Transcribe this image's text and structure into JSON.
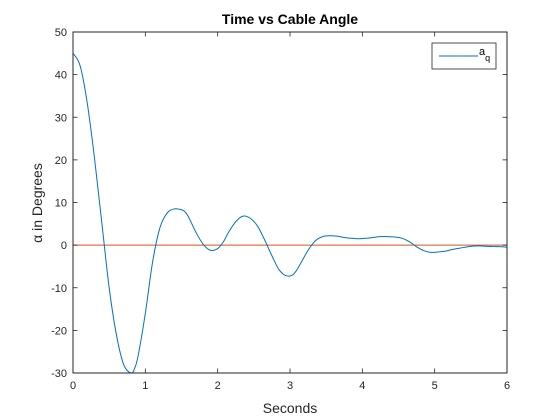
{
  "chart_data": {
    "type": "line",
    "title": "Time vs Cable Angle",
    "xlabel": "Seconds",
    "ylabel_symbol": "α",
    "ylabel_rest": " in Degrees",
    "xlim": [
      0,
      6
    ],
    "ylim": [
      -30,
      50
    ],
    "xticks": [
      0,
      1,
      2,
      3,
      4,
      5,
      6
    ],
    "yticks": [
      -30,
      -20,
      -10,
      0,
      10,
      20,
      30,
      40,
      50
    ],
    "grid": false,
    "legend_position": "top-right",
    "legend": {
      "main": "a",
      "subscript": "q"
    },
    "series": [
      {
        "name": "a_q",
        "color": "#0072BD",
        "x": [
          0,
          0.1,
          0.2,
          0.3,
          0.4,
          0.5,
          0.6,
          0.7,
          0.8,
          0.85,
          0.9,
          1.0,
          1.1,
          1.2,
          1.3,
          1.4,
          1.5,
          1.55,
          1.6,
          1.7,
          1.8,
          1.9,
          2.0,
          2.08,
          2.15,
          2.25,
          2.35,
          2.45,
          2.55,
          2.65,
          2.75,
          2.85,
          2.95,
          3.05,
          3.15,
          3.25,
          3.35,
          3.45,
          3.55,
          3.65,
          3.75,
          3.85,
          3.95,
          4.05,
          4.15,
          4.25,
          4.35,
          4.45,
          4.55,
          4.65,
          4.75,
          4.85,
          4.95,
          5.05,
          5.15,
          5.25,
          5.35,
          5.45,
          5.55,
          5.65,
          5.75,
          5.85,
          5.95,
          6.0
        ],
        "y": [
          45,
          42,
          33,
          20,
          5,
          -10,
          -21,
          -28,
          -30,
          -29,
          -26,
          -16,
          -4,
          4,
          7.5,
          8.5,
          8.3,
          7.8,
          6.5,
          3,
          0.2,
          -1.2,
          -0.8,
          0.8,
          3,
          5.5,
          6.8,
          6.3,
          4.5,
          1.2,
          -2.5,
          -5.8,
          -7.2,
          -6.8,
          -4.2,
          -1.2,
          1,
          2,
          2.2,
          2.1,
          1.8,
          1.6,
          1.5,
          1.6,
          1.8,
          2,
          2,
          1.9,
          1.6,
          0.8,
          -0.4,
          -1.3,
          -1.7,
          -1.6,
          -1.4,
          -1.0,
          -0.7,
          -0.4,
          -0.2,
          -0.2,
          -0.3,
          -0.35,
          -0.4,
          -0.5
        ]
      },
      {
        "name": "zero",
        "color": "#D95319",
        "x": [
          0,
          6
        ],
        "y": [
          0,
          0
        ]
      }
    ]
  }
}
